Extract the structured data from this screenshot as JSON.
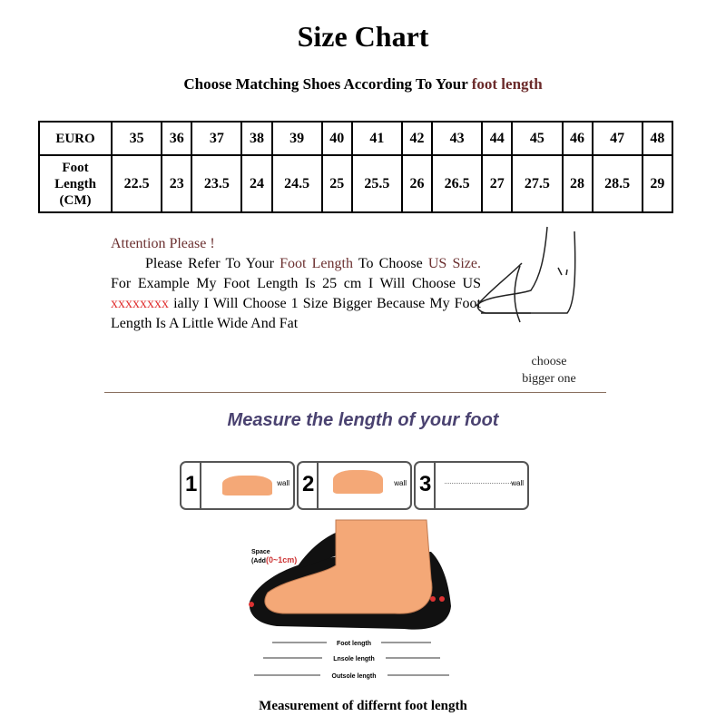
{
  "title": "Size Chart",
  "subtitle": {
    "prefix": "Choose Matching Shoes According To Your ",
    "highlight": "foot length"
  },
  "table": {
    "row1_header": "EURO",
    "row2_header": [
      "Foot",
      "Length",
      "(CM)"
    ],
    "euro": [
      "35",
      "36",
      "37",
      "38",
      "39",
      "40",
      "41",
      "42",
      "43",
      "44",
      "45",
      "46",
      "47",
      "48"
    ],
    "foot_length_cm": [
      "22.5",
      "23",
      "23.5",
      "24",
      "24.5",
      "25",
      "25.5",
      "26",
      "26.5",
      "27",
      "27.5",
      "28",
      "28.5",
      "29"
    ]
  },
  "attention": {
    "heading": "Attention Please !",
    "p1": "Please Refer To Your ",
    "p1_hl": "Foot Length",
    "p2": " To Choose ",
    "p2_hl": "US Size.",
    "p3": " For Example My Foot Length Is 25 cm I Will Choose US ",
    "p3_red": "xxxxxxxx",
    "p4": " ially I Will Choose 1 Size Bigger Because My Foot Length Is A Little Wide And Fat"
  },
  "choose_bigger": [
    "choose",
    "bigger one"
  ],
  "measure_heading": "Measure the length of your foot",
  "steps": [
    {
      "num": "1",
      "label": "wall"
    },
    {
      "num": "2",
      "label": "wall"
    },
    {
      "num": "3",
      "label": "wall"
    }
  ],
  "diagram": {
    "space": "Space",
    "add_prefix": "(Add",
    "add_range": "(0~1cm)",
    "foot_length": "Foot length",
    "insole_length": "Lnsole length",
    "outsole_length": "Outsole length"
  },
  "caption": "Measurement of differnt foot length",
  "colors": {
    "highlight": "#6b2a2a",
    "red": "#e03030",
    "heading": "#4a4270",
    "skin": "#f4a877"
  }
}
